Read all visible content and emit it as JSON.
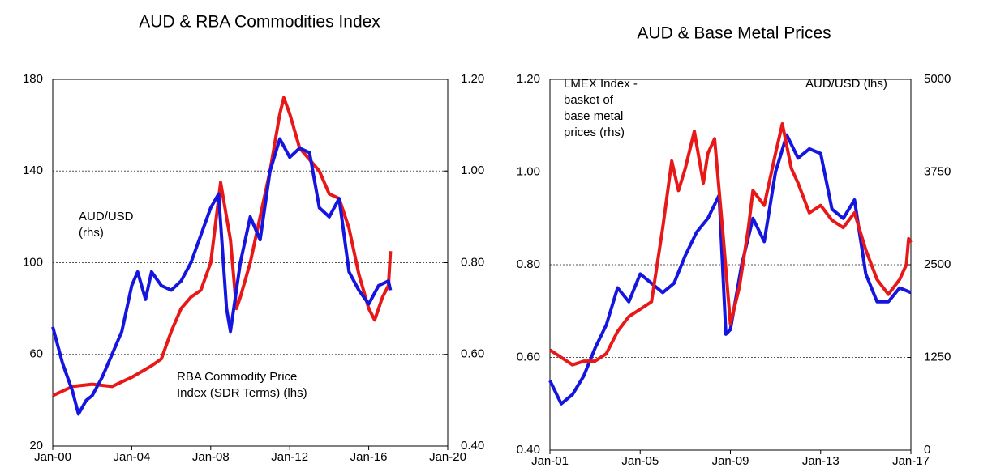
{
  "chart_data": [
    {
      "type": "line",
      "title": "AUD & RBA Commodities Index",
      "xlim": [
        2000,
        2020
      ],
      "xticks": [
        {
          "value": 2000,
          "label": "Jan-00"
        },
        {
          "value": 2004,
          "label": "Jan-04"
        },
        {
          "value": 2008,
          "label": "Jan-08"
        },
        {
          "value": 2012,
          "label": "Jan-12"
        },
        {
          "value": 2016,
          "label": "Jan-16"
        },
        {
          "value": 2020,
          "label": "Jan-20"
        }
      ],
      "ylim": [
        20,
        180
      ],
      "yticks": [
        20,
        60,
        100,
        140,
        180
      ],
      "y2lim": [
        0.4,
        1.2
      ],
      "y2ticks": [
        {
          "value": 0.4,
          "label": "0.40"
        },
        {
          "value": 0.6,
          "label": "0.60"
        },
        {
          "value": 0.8,
          "label": "0.80"
        },
        {
          "value": 1.0,
          "label": "1.00"
        },
        {
          "value": 1.2,
          "label": "1.20"
        }
      ],
      "grid": true,
      "annotations": [
        {
          "lines": [
            "AUD/USD",
            "(rhs)"
          ],
          "color": "#1515e0"
        },
        {
          "lines": [
            "RBA  Commodity Price",
            "Index (SDR Terms) (lhs)"
          ],
          "color": "#e81818"
        }
      ],
      "series": [
        {
          "name": "RBA Commodity Price Index",
          "color": "#e81818",
          "axis": "y",
          "x": [
            2000,
            2001,
            2002,
            2003,
            2003.5,
            2004,
            2005,
            2005.5,
            2006,
            2006.5,
            2007,
            2007.5,
            2008,
            2008.5,
            2009,
            2009.3,
            2009.5,
            2010,
            2010.5,
            2011,
            2011.5,
            2011.7,
            2012,
            2012.5,
            2013,
            2013.5,
            2014,
            2014.5,
            2015,
            2015.5,
            2016,
            2016.3,
            2016.7,
            2017,
            2017.1
          ],
          "values": [
            42,
            46,
            47,
            46,
            48,
            50,
            55,
            58,
            70,
            80,
            85,
            88,
            100,
            135,
            110,
            80,
            85,
            100,
            120,
            140,
            165,
            172,
            165,
            150,
            145,
            140,
            130,
            128,
            115,
            95,
            80,
            75,
            85,
            90,
            105
          ]
        },
        {
          "name": "AUD/USD",
          "color": "#1515e0",
          "axis": "y2",
          "x": [
            2000,
            2000.5,
            2001,
            2001.3,
            2001.7,
            2002,
            2002.5,
            2003,
            2003.5,
            2004,
            2004.3,
            2004.7,
            2005,
            2005.5,
            2006,
            2006.5,
            2007,
            2007.5,
            2008,
            2008.4,
            2008.8,
            2009,
            2009.5,
            2010,
            2010.5,
            2011,
            2011.5,
            2012,
            2012.5,
            2013,
            2013.5,
            2014,
            2014.5,
            2015,
            2015.5,
            2016,
            2016.5,
            2017,
            2017.1
          ],
          "values": [
            0.66,
            0.58,
            0.52,
            0.47,
            0.5,
            0.51,
            0.55,
            0.6,
            0.65,
            0.75,
            0.78,
            0.72,
            0.78,
            0.75,
            0.74,
            0.76,
            0.8,
            0.86,
            0.92,
            0.95,
            0.7,
            0.65,
            0.8,
            0.9,
            0.85,
            1.0,
            1.07,
            1.03,
            1.05,
            1.04,
            0.92,
            0.9,
            0.94,
            0.78,
            0.74,
            0.71,
            0.75,
            0.76,
            0.74
          ]
        }
      ]
    },
    {
      "type": "line",
      "title": "AUD & Base Metal Prices",
      "xlim": [
        2001,
        2017
      ],
      "xticks": [
        {
          "value": 2001,
          "label": "Jan-01"
        },
        {
          "value": 2005,
          "label": "Jan-05"
        },
        {
          "value": 2009,
          "label": "Jan-09"
        },
        {
          "value": 2013,
          "label": "Jan-13"
        },
        {
          "value": 2017,
          "label": "Jan-17"
        }
      ],
      "ylim": [
        0.4,
        1.2
      ],
      "yticks": [
        {
          "value": 0.4,
          "label": "0.40"
        },
        {
          "value": 0.6,
          "label": "0.60"
        },
        {
          "value": 0.8,
          "label": "0.80"
        },
        {
          "value": 1.0,
          "label": "1.00"
        },
        {
          "value": 1.2,
          "label": "1.20"
        }
      ],
      "y2lim": [
        0,
        5000
      ],
      "y2ticks": [
        0,
        1250,
        2500,
        3750,
        5000
      ],
      "grid": true,
      "annotations": [
        {
          "lines": [
            "LMEX Index -",
            "basket of",
            "base metal",
            "prices (rhs)"
          ],
          "color": "#e81818"
        },
        {
          "lines": [
            "AUD/USD (lhs)"
          ],
          "color": "#1515e0"
        }
      ],
      "series": [
        {
          "name": "AUD/USD",
          "color": "#1515e0",
          "axis": "y",
          "x": [
            2001,
            2001.5,
            2002,
            2002.5,
            2003,
            2003.5,
            2004,
            2004.5,
            2005,
            2005.5,
            2006,
            2006.5,
            2007,
            2007.5,
            2008,
            2008.5,
            2008.8,
            2009,
            2009.5,
            2010,
            2010.5,
            2011,
            2011.5,
            2012,
            2012.5,
            2013,
            2013.5,
            2014,
            2014.5,
            2015,
            2015.5,
            2016,
            2016.5,
            2017
          ],
          "values": [
            0.55,
            0.5,
            0.52,
            0.56,
            0.62,
            0.67,
            0.75,
            0.72,
            0.78,
            0.76,
            0.74,
            0.76,
            0.82,
            0.87,
            0.9,
            0.95,
            0.65,
            0.66,
            0.8,
            0.9,
            0.85,
            1.0,
            1.08,
            1.03,
            1.05,
            1.04,
            0.92,
            0.9,
            0.94,
            0.78,
            0.72,
            0.72,
            0.75,
            0.74
          ]
        },
        {
          "name": "LMEX Index",
          "color": "#e81818",
          "axis": "y2",
          "x": [
            2001,
            2001.5,
            2002,
            2002.5,
            2003,
            2003.5,
            2004,
            2004.5,
            2005,
            2005.5,
            2006,
            2006.4,
            2006.7,
            2007,
            2007.4,
            2007.8,
            2008,
            2008.3,
            2008.7,
            2009,
            2009.4,
            2009.8,
            2010,
            2010.5,
            2011,
            2011.3,
            2011.7,
            2012,
            2012.5,
            2013,
            2013.5,
            2014,
            2014.5,
            2015,
            2015.5,
            2016,
            2016.5,
            2016.8,
            2016.9,
            2017
          ],
          "values": [
            1350,
            1250,
            1150,
            1200,
            1200,
            1300,
            1600,
            1800,
            1900,
            2000,
            3000,
            3900,
            3500,
            3800,
            4300,
            3600,
            4000,
            4200,
            2800,
            1700,
            2200,
            3000,
            3500,
            3300,
            4000,
            4400,
            3800,
            3600,
            3200,
            3300,
            3100,
            3000,
            3200,
            2700,
            2300,
            2100,
            2300,
            2500,
            2850,
            2800
          ]
        }
      ]
    }
  ]
}
